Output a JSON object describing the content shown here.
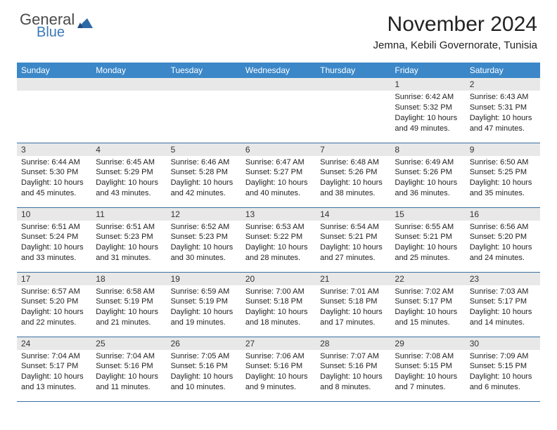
{
  "brand": {
    "line1": "General",
    "line2": "Blue",
    "line1_color": "#4a4a4a",
    "line2_color": "#3b7ab8",
    "shape_color": "#2f6aa8"
  },
  "header": {
    "month_title": "November 2024",
    "location": "Jemna, Kebili Governorate, Tunisia",
    "title_fontsize": 30,
    "location_fontsize": 15
  },
  "calendar": {
    "header_bg": "#3b87c8",
    "header_fg": "#ffffff",
    "daynum_bg": "#e8e8e8",
    "row_border": "#3b6fa0",
    "body_font_size": 11,
    "days_of_week": [
      "Sunday",
      "Monday",
      "Tuesday",
      "Wednesday",
      "Thursday",
      "Friday",
      "Saturday"
    ],
    "weeks": [
      [
        {
          "n": "",
          "sunrise": "",
          "sunset": "",
          "daylight": ""
        },
        {
          "n": "",
          "sunrise": "",
          "sunset": "",
          "daylight": ""
        },
        {
          "n": "",
          "sunrise": "",
          "sunset": "",
          "daylight": ""
        },
        {
          "n": "",
          "sunrise": "",
          "sunset": "",
          "daylight": ""
        },
        {
          "n": "",
          "sunrise": "",
          "sunset": "",
          "daylight": ""
        },
        {
          "n": "1",
          "sunrise": "Sunrise: 6:42 AM",
          "sunset": "Sunset: 5:32 PM",
          "daylight": "Daylight: 10 hours and 49 minutes."
        },
        {
          "n": "2",
          "sunrise": "Sunrise: 6:43 AM",
          "sunset": "Sunset: 5:31 PM",
          "daylight": "Daylight: 10 hours and 47 minutes."
        }
      ],
      [
        {
          "n": "3",
          "sunrise": "Sunrise: 6:44 AM",
          "sunset": "Sunset: 5:30 PM",
          "daylight": "Daylight: 10 hours and 45 minutes."
        },
        {
          "n": "4",
          "sunrise": "Sunrise: 6:45 AM",
          "sunset": "Sunset: 5:29 PM",
          "daylight": "Daylight: 10 hours and 43 minutes."
        },
        {
          "n": "5",
          "sunrise": "Sunrise: 6:46 AM",
          "sunset": "Sunset: 5:28 PM",
          "daylight": "Daylight: 10 hours and 42 minutes."
        },
        {
          "n": "6",
          "sunrise": "Sunrise: 6:47 AM",
          "sunset": "Sunset: 5:27 PM",
          "daylight": "Daylight: 10 hours and 40 minutes."
        },
        {
          "n": "7",
          "sunrise": "Sunrise: 6:48 AM",
          "sunset": "Sunset: 5:26 PM",
          "daylight": "Daylight: 10 hours and 38 minutes."
        },
        {
          "n": "8",
          "sunrise": "Sunrise: 6:49 AM",
          "sunset": "Sunset: 5:26 PM",
          "daylight": "Daylight: 10 hours and 36 minutes."
        },
        {
          "n": "9",
          "sunrise": "Sunrise: 6:50 AM",
          "sunset": "Sunset: 5:25 PM",
          "daylight": "Daylight: 10 hours and 35 minutes."
        }
      ],
      [
        {
          "n": "10",
          "sunrise": "Sunrise: 6:51 AM",
          "sunset": "Sunset: 5:24 PM",
          "daylight": "Daylight: 10 hours and 33 minutes."
        },
        {
          "n": "11",
          "sunrise": "Sunrise: 6:51 AM",
          "sunset": "Sunset: 5:23 PM",
          "daylight": "Daylight: 10 hours and 31 minutes."
        },
        {
          "n": "12",
          "sunrise": "Sunrise: 6:52 AM",
          "sunset": "Sunset: 5:23 PM",
          "daylight": "Daylight: 10 hours and 30 minutes."
        },
        {
          "n": "13",
          "sunrise": "Sunrise: 6:53 AM",
          "sunset": "Sunset: 5:22 PM",
          "daylight": "Daylight: 10 hours and 28 minutes."
        },
        {
          "n": "14",
          "sunrise": "Sunrise: 6:54 AM",
          "sunset": "Sunset: 5:21 PM",
          "daylight": "Daylight: 10 hours and 27 minutes."
        },
        {
          "n": "15",
          "sunrise": "Sunrise: 6:55 AM",
          "sunset": "Sunset: 5:21 PM",
          "daylight": "Daylight: 10 hours and 25 minutes."
        },
        {
          "n": "16",
          "sunrise": "Sunrise: 6:56 AM",
          "sunset": "Sunset: 5:20 PM",
          "daylight": "Daylight: 10 hours and 24 minutes."
        }
      ],
      [
        {
          "n": "17",
          "sunrise": "Sunrise: 6:57 AM",
          "sunset": "Sunset: 5:20 PM",
          "daylight": "Daylight: 10 hours and 22 minutes."
        },
        {
          "n": "18",
          "sunrise": "Sunrise: 6:58 AM",
          "sunset": "Sunset: 5:19 PM",
          "daylight": "Daylight: 10 hours and 21 minutes."
        },
        {
          "n": "19",
          "sunrise": "Sunrise: 6:59 AM",
          "sunset": "Sunset: 5:19 PM",
          "daylight": "Daylight: 10 hours and 19 minutes."
        },
        {
          "n": "20",
          "sunrise": "Sunrise: 7:00 AM",
          "sunset": "Sunset: 5:18 PM",
          "daylight": "Daylight: 10 hours and 18 minutes."
        },
        {
          "n": "21",
          "sunrise": "Sunrise: 7:01 AM",
          "sunset": "Sunset: 5:18 PM",
          "daylight": "Daylight: 10 hours and 17 minutes."
        },
        {
          "n": "22",
          "sunrise": "Sunrise: 7:02 AM",
          "sunset": "Sunset: 5:17 PM",
          "daylight": "Daylight: 10 hours and 15 minutes."
        },
        {
          "n": "23",
          "sunrise": "Sunrise: 7:03 AM",
          "sunset": "Sunset: 5:17 PM",
          "daylight": "Daylight: 10 hours and 14 minutes."
        }
      ],
      [
        {
          "n": "24",
          "sunrise": "Sunrise: 7:04 AM",
          "sunset": "Sunset: 5:17 PM",
          "daylight": "Daylight: 10 hours and 13 minutes."
        },
        {
          "n": "25",
          "sunrise": "Sunrise: 7:04 AM",
          "sunset": "Sunset: 5:16 PM",
          "daylight": "Daylight: 10 hours and 11 minutes."
        },
        {
          "n": "26",
          "sunrise": "Sunrise: 7:05 AM",
          "sunset": "Sunset: 5:16 PM",
          "daylight": "Daylight: 10 hours and 10 minutes."
        },
        {
          "n": "27",
          "sunrise": "Sunrise: 7:06 AM",
          "sunset": "Sunset: 5:16 PM",
          "daylight": "Daylight: 10 hours and 9 minutes."
        },
        {
          "n": "28",
          "sunrise": "Sunrise: 7:07 AM",
          "sunset": "Sunset: 5:16 PM",
          "daylight": "Daylight: 10 hours and 8 minutes."
        },
        {
          "n": "29",
          "sunrise": "Sunrise: 7:08 AM",
          "sunset": "Sunset: 5:15 PM",
          "daylight": "Daylight: 10 hours and 7 minutes."
        },
        {
          "n": "30",
          "sunrise": "Sunrise: 7:09 AM",
          "sunset": "Sunset: 5:15 PM",
          "daylight": "Daylight: 10 hours and 6 minutes."
        }
      ]
    ]
  }
}
